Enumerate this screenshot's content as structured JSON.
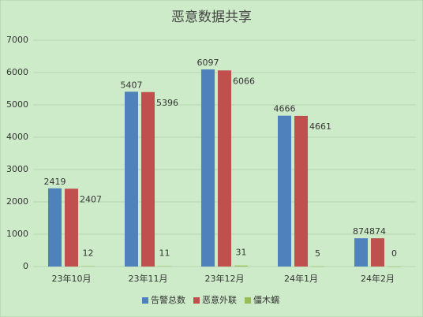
{
  "chart_data": {
    "type": "bar",
    "title": "恶意数据共享",
    "categories": [
      "23年10月",
      "23年11月",
      "23年12月",
      "24年1月",
      "24年2月"
    ],
    "series": [
      {
        "name": "告警总数",
        "color": "#4f81bd",
        "values": [
          2419,
          5407,
          6097,
          4666,
          874
        ]
      },
      {
        "name": "恶意外联",
        "color": "#c0504d",
        "values": [
          2407,
          5396,
          6066,
          4661,
          874
        ]
      },
      {
        "name": "僵木蠕",
        "color": "#9bbb59",
        "values": [
          12,
          11,
          31,
          5,
          0
        ]
      }
    ],
    "ylim": [
      0,
      7000
    ],
    "yticks": [
      0,
      1000,
      2000,
      3000,
      4000,
      5000,
      6000,
      7000
    ],
    "grid": true,
    "legend": "bottom"
  }
}
